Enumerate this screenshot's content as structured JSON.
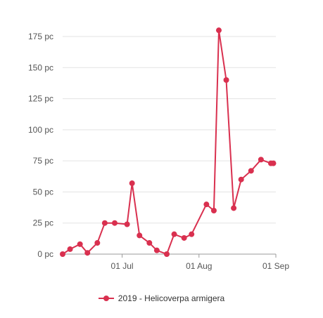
{
  "chart_data": {
    "type": "line",
    "title": "",
    "xlabel": "",
    "ylabel": "",
    "ylim": [
      0,
      175
    ],
    "y_ticks": [
      0,
      25,
      50,
      75,
      100,
      125,
      150,
      175
    ],
    "y_tick_labels": [
      "0 pc",
      "25 pc",
      "50 pc",
      "75 pc",
      "100 pc",
      "125 pc",
      "150 pc",
      "175 pc"
    ],
    "xlim": [
      "2019-06-07",
      "2019-09-01"
    ],
    "x_ticks": [
      "2019-07-01",
      "2019-08-01",
      "2019-09-01"
    ],
    "x_tick_labels": [
      "01 Jul",
      "01 Aug",
      "01 Sep"
    ],
    "grid": "horizontal",
    "legend_position": "bottom-center",
    "series": [
      {
        "name": "2019 - Helicoverpa armigera",
        "color": "#d9304f",
        "x": [
          "2019-06-07",
          "2019-06-10",
          "2019-06-14",
          "2019-06-17",
          "2019-06-21",
          "2019-06-24",
          "2019-06-28",
          "2019-07-03",
          "2019-07-05",
          "2019-07-08",
          "2019-07-12",
          "2019-07-15",
          "2019-07-19",
          "2019-07-22",
          "2019-07-26",
          "2019-07-29",
          "2019-08-04",
          "2019-08-07",
          "2019-08-09",
          "2019-08-12",
          "2019-08-15",
          "2019-08-18",
          "2019-08-22",
          "2019-08-26",
          "2019-08-30",
          "2019-08-31"
        ],
        "y": [
          0,
          4,
          8,
          1,
          9,
          25,
          25,
          24,
          57,
          15,
          9,
          3,
          0,
          16,
          13,
          16,
          40,
          35,
          180,
          140,
          37,
          60,
          67,
          76,
          73,
          73
        ]
      }
    ]
  },
  "legend": {
    "label": "2019 - Helicoverpa armigera"
  }
}
